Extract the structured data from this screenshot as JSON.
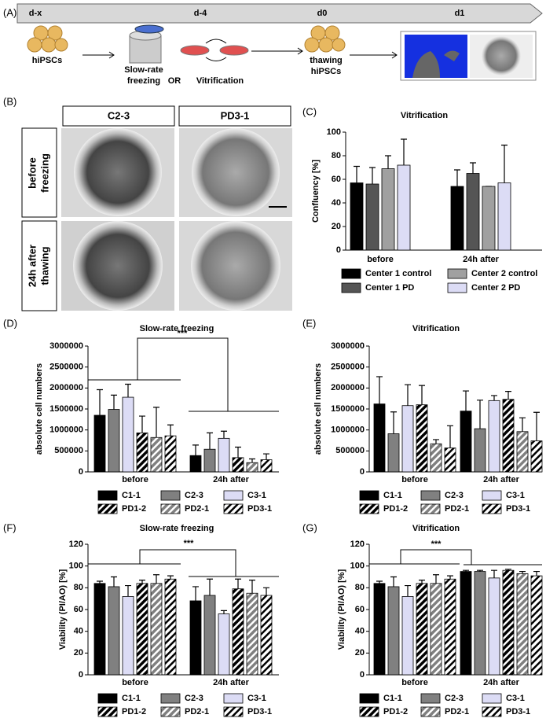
{
  "panels": [
    "(A)",
    "(B)",
    "(C)",
    "(D)",
    "(E)",
    "(F)",
    "(G)"
  ],
  "timeline": {
    "days": [
      "d-x",
      "d-4",
      "d0",
      "d1"
    ],
    "steps": [
      "hiPSCs",
      "Slow-rate",
      "freezing",
      "OR",
      "Vitrification",
      "thawing",
      "hiPSCs"
    ]
  },
  "photos": {
    "columns": [
      "C2-3",
      "PD3-1"
    ],
    "rows": [
      [
        "before",
        "freezing"
      ],
      [
        "24h after",
        "thawing"
      ]
    ]
  },
  "chart_data": [
    {
      "type": "bar",
      "title": "Vitrification",
      "ylabel": "Confluency [%]",
      "categories": [
        "before",
        "24h after"
      ],
      "ylim": [
        0,
        100
      ],
      "yticks": [
        0,
        20,
        40,
        60,
        80,
        100
      ],
      "series": [
        {
          "name": "Center 1 control",
          "color": "#000000",
          "values": [
            57,
            54
          ],
          "errors": [
            14,
            14
          ]
        },
        {
          "name": "Center 1 PD",
          "color": "#555555",
          "values": [
            56,
            65
          ],
          "errors": [
            14,
            9
          ]
        },
        {
          "name": "Center 2 control",
          "color": "#a0a0a0",
          "values": [
            69,
            54
          ],
          "errors": [
            11,
            0
          ]
        },
        {
          "name": "Center 2 PD",
          "color": "#dcdcf5",
          "values": [
            72,
            57
          ],
          "errors": [
            22,
            32
          ]
        }
      ]
    },
    {
      "type": "bar",
      "title": "Slow-rate freezing",
      "ylabel": "absolute cell numbers",
      "annotation": "***",
      "categories": [
        "before",
        "24h after"
      ],
      "ylim": [
        0,
        3000000
      ],
      "yticks": [
        0,
        500000,
        1000000,
        1500000,
        2000000,
        2500000,
        3000000
      ],
      "series": [
        {
          "name": "C1-1",
          "color": "#000000",
          "values": [
            1350000,
            390000
          ],
          "errors": [
            610000,
            250000
          ]
        },
        {
          "name": "C2-3",
          "color": "#808080",
          "values": [
            1490000,
            540000
          ],
          "errors": [
            340000,
            390000
          ]
        },
        {
          "name": "C3-1",
          "color": "#dcdcf5",
          "values": [
            1780000,
            800000
          ],
          "errors": [
            310000,
            170000
          ]
        },
        {
          "name": "PD1-2",
          "color": "#000000",
          "hatch": true,
          "values": [
            930000,
            340000
          ],
          "errors": [
            400000,
            250000
          ]
        },
        {
          "name": "PD2-1",
          "color": "#808080",
          "hatch": true,
          "values": [
            820000,
            220000
          ],
          "errors": [
            720000,
            90000
          ]
        },
        {
          "name": "PD3-1",
          "color": "#ffffff",
          "hatch": true,
          "values": [
            860000,
            290000
          ],
          "errors": [
            260000,
            140000
          ]
        }
      ]
    },
    {
      "type": "bar",
      "title": "Vitrification",
      "ylabel": "absolute cell numbers",
      "categories": [
        "before",
        "24h after"
      ],
      "ylim": [
        0,
        3000000
      ],
      "yticks": [
        0,
        500000,
        1000000,
        1500000,
        2000000,
        2500000,
        3000000
      ],
      "series": [
        {
          "name": "C1-1",
          "color": "#000000",
          "values": [
            1620000,
            1450000
          ],
          "errors": [
            650000,
            480000
          ]
        },
        {
          "name": "C2-3",
          "color": "#808080",
          "values": [
            910000,
            1030000
          ],
          "errors": [
            520000,
            680000
          ]
        },
        {
          "name": "C3-1",
          "color": "#dcdcf5",
          "values": [
            1580000,
            1700000
          ],
          "errors": [
            500000,
            120000
          ]
        },
        {
          "name": "PD1-2",
          "color": "#000000",
          "hatch": true,
          "values": [
            1600000,
            1730000
          ],
          "errors": [
            460000,
            190000
          ]
        },
        {
          "name": "PD2-1",
          "color": "#808080",
          "hatch": true,
          "values": [
            670000,
            960000
          ],
          "errors": [
            100000,
            330000
          ]
        },
        {
          "name": "PD3-1",
          "color": "#ffffff",
          "hatch": true,
          "values": [
            570000,
            740000
          ],
          "errors": [
            530000,
            680000
          ]
        }
      ]
    },
    {
      "type": "bar",
      "title": "Slow-rate freezing",
      "ylabel": "Viability (PI/AO) [%]",
      "annotation": "***",
      "categories": [
        "before",
        "24h after"
      ],
      "ylim": [
        0,
        120
      ],
      "yticks": [
        0,
        20,
        40,
        60,
        80,
        100,
        120
      ],
      "series": [
        {
          "name": "C1-1",
          "color": "#000000",
          "values": [
            84,
            68
          ],
          "errors": [
            2,
            13
          ]
        },
        {
          "name": "C2-3",
          "color": "#808080",
          "values": [
            81,
            73
          ],
          "errors": [
            9,
            15
          ]
        },
        {
          "name": "C3-1",
          "color": "#dcdcf5",
          "values": [
            72,
            56
          ],
          "errors": [
            10,
            3
          ]
        },
        {
          "name": "PD1-2",
          "color": "#000000",
          "hatch": true,
          "values": [
            84,
            79
          ],
          "errors": [
            3,
            9
          ]
        },
        {
          "name": "PD2-1",
          "color": "#808080",
          "hatch": true,
          "values": [
            84,
            75
          ],
          "errors": [
            8,
            12
          ]
        },
        {
          "name": "PD3-1",
          "color": "#ffffff",
          "hatch": true,
          "values": [
            88,
            73
          ],
          "errors": [
            3,
            7
          ]
        }
      ]
    },
    {
      "type": "bar",
      "title": "Vitrification",
      "ylabel": "Viability (PI/AO) [%]",
      "annotation": "***",
      "categories": [
        "before",
        "24h after"
      ],
      "ylim": [
        0,
        120
      ],
      "yticks": [
        0,
        20,
        40,
        60,
        80,
        100,
        120
      ],
      "series": [
        {
          "name": "C1-1",
          "color": "#000000",
          "values": [
            84,
            95
          ],
          "errors": [
            2,
            1
          ]
        },
        {
          "name": "C2-3",
          "color": "#808080",
          "values": [
            81,
            95
          ],
          "errors": [
            9,
            1
          ]
        },
        {
          "name": "C3-1",
          "color": "#dcdcf5",
          "values": [
            72,
            89
          ],
          "errors": [
            10,
            7
          ]
        },
        {
          "name": "PD1-2",
          "color": "#000000",
          "hatch": true,
          "values": [
            84,
            96
          ],
          "errors": [
            3,
            1
          ]
        },
        {
          "name": "PD2-1",
          "color": "#808080",
          "hatch": true,
          "values": [
            84,
            93
          ],
          "errors": [
            8,
            2
          ]
        },
        {
          "name": "PD3-1",
          "color": "#ffffff",
          "hatch": true,
          "values": [
            88,
            91
          ],
          "errors": [
            3,
            4
          ]
        }
      ]
    }
  ]
}
